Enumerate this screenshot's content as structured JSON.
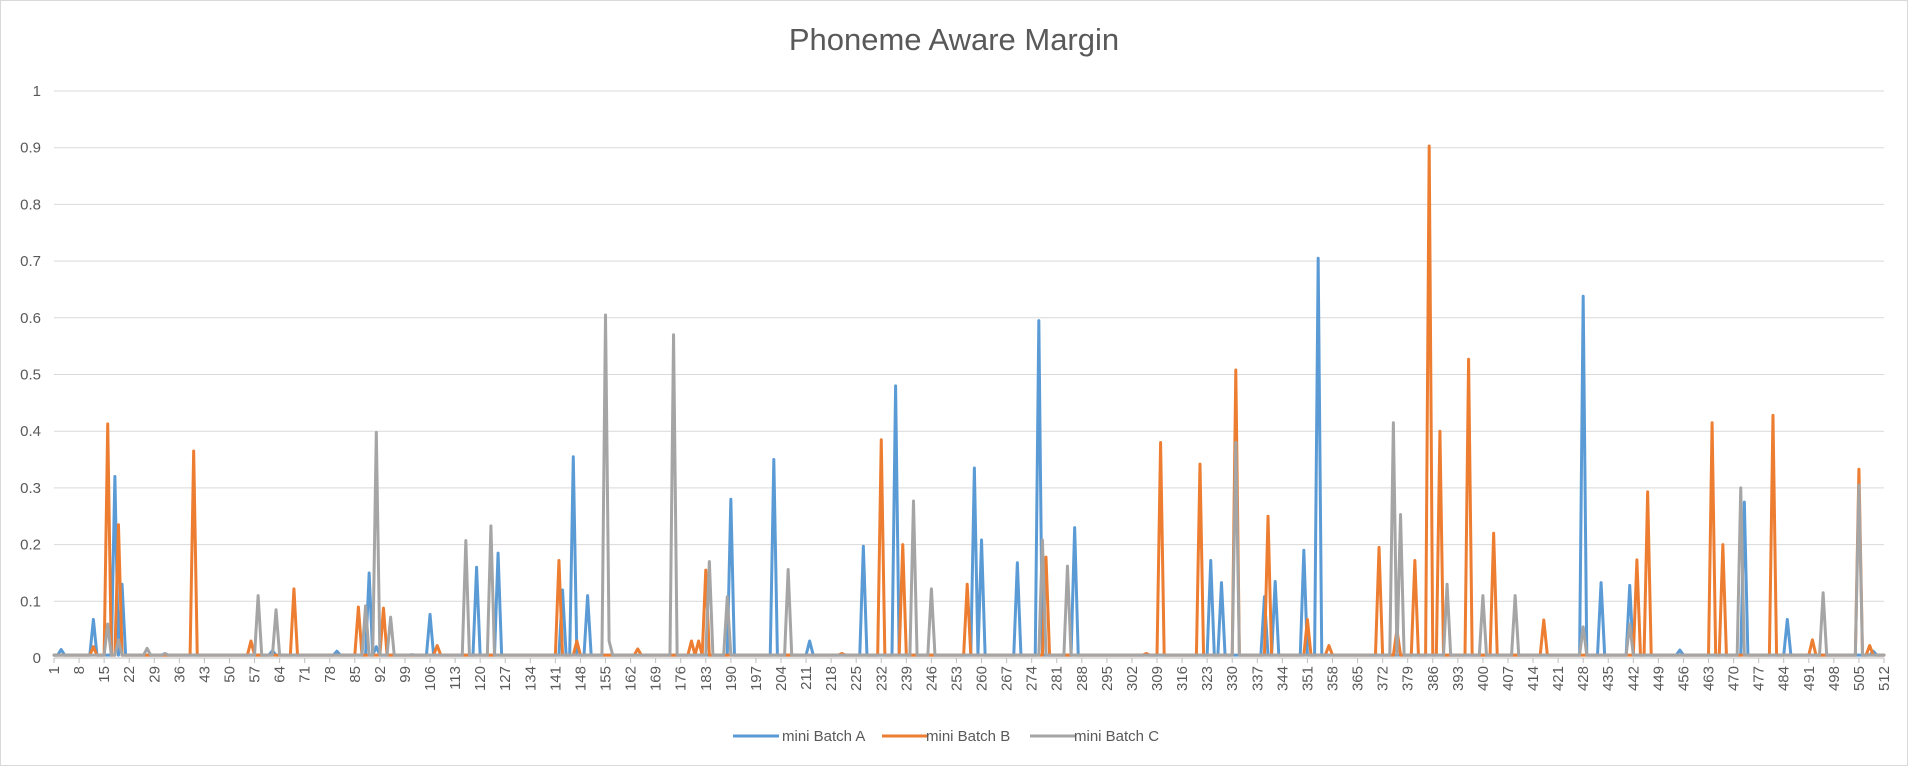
{
  "chart_data": {
    "type": "line",
    "title": "Phoneme Aware Margin",
    "xlabel": "",
    "ylabel": "",
    "xlim": [
      1,
      512
    ],
    "ylim": [
      0,
      1
    ],
    "y_ticks": [
      0,
      0.1,
      0.2,
      0.3,
      0.4,
      0.5,
      0.6,
      0.7,
      0.8,
      0.9,
      1
    ],
    "y_tick_labels": [
      "0",
      "0.1",
      "0.2",
      "0.3",
      "0.4",
      "0.5",
      "0.6",
      "0.7",
      "0.8",
      "0.9",
      "1"
    ],
    "x_tick_labels": [
      "1",
      "8",
      "15",
      "22",
      "29",
      "36",
      "43",
      "50",
      "57",
      "64",
      "71",
      "78",
      "85",
      "92",
      "99",
      "106",
      "113",
      "120",
      "127",
      "134",
      "141",
      "148",
      "155",
      "162",
      "169",
      "176",
      "183",
      "190",
      "197",
      "204",
      "211",
      "218",
      "225",
      "232",
      "239",
      "246",
      "253",
      "260",
      "267",
      "274",
      "281",
      "288",
      "295",
      "302",
      "309",
      "316",
      "323",
      "330",
      "337",
      "344",
      "351",
      "358",
      "365",
      "372",
      "379",
      "386",
      "393",
      "400",
      "407",
      "414",
      "421",
      "428",
      "435",
      "442",
      "449",
      "456",
      "463",
      "470",
      "477",
      "484",
      "491",
      "498",
      "505",
      "512"
    ],
    "grid": true,
    "legend_position": "bottom",
    "baseline": 0.005,
    "series": [
      {
        "name": "mini Batch A",
        "color": "#5b9bd5",
        "spikes": [
          [
            3,
            0.015
          ],
          [
            12,
            0.068
          ],
          [
            18,
            0.32
          ],
          [
            20,
            0.13
          ],
          [
            62,
            0.013
          ],
          [
            80,
            0.012
          ],
          [
            89,
            0.15
          ],
          [
            91,
            0.02
          ],
          [
            106,
            0.077
          ],
          [
            119,
            0.16
          ],
          [
            125,
            0.185
          ],
          [
            143,
            0.12
          ],
          [
            146,
            0.355
          ],
          [
            150,
            0.11
          ],
          [
            190,
            0.28
          ],
          [
            202,
            0.35
          ],
          [
            212,
            0.03
          ],
          [
            227,
            0.197
          ],
          [
            236,
            0.48
          ],
          [
            258,
            0.335
          ],
          [
            260,
            0.208
          ],
          [
            270,
            0.168
          ],
          [
            276,
            0.595
          ],
          [
            286,
            0.23
          ],
          [
            324,
            0.172
          ],
          [
            327,
            0.133
          ],
          [
            339,
            0.108
          ],
          [
            342,
            0.135
          ],
          [
            350,
            0.19
          ],
          [
            354,
            0.705
          ],
          [
            428,
            0.638
          ],
          [
            433,
            0.133
          ],
          [
            441,
            0.128
          ],
          [
            455,
            0.014
          ],
          [
            473,
            0.275
          ],
          [
            485,
            0.068
          ],
          [
            509,
            0.012
          ]
        ]
      },
      {
        "name": "mini Batch B",
        "color": "#ed7d31",
        "spikes": [
          [
            12,
            0.02
          ],
          [
            16,
            0.413
          ],
          [
            19,
            0.235
          ],
          [
            40,
            0.365
          ],
          [
            56,
            0.03
          ],
          [
            68,
            0.122
          ],
          [
            86,
            0.09
          ],
          [
            93,
            0.088
          ],
          [
            108,
            0.022
          ],
          [
            142,
            0.172
          ],
          [
            147,
            0.03
          ],
          [
            164,
            0.016
          ],
          [
            179,
            0.03
          ],
          [
            181,
            0.03
          ],
          [
            183,
            0.155
          ],
          [
            221,
            0.008
          ],
          [
            232,
            0.385
          ],
          [
            238,
            0.2
          ],
          [
            256,
            0.13
          ],
          [
            278,
            0.178
          ],
          [
            306,
            0.008
          ],
          [
            310,
            0.38
          ],
          [
            321,
            0.342
          ],
          [
            331,
            0.508
          ],
          [
            340,
            0.25
          ],
          [
            351,
            0.068
          ],
          [
            357,
            0.022
          ],
          [
            371,
            0.195
          ],
          [
            376,
            0.05
          ],
          [
            381,
            0.172
          ],
          [
            385,
            0.903
          ],
          [
            388,
            0.4
          ],
          [
            396,
            0.527
          ],
          [
            403,
            0.22
          ],
          [
            417,
            0.067
          ],
          [
            443,
            0.173
          ],
          [
            446,
            0.293
          ],
          [
            464,
            0.415
          ],
          [
            467,
            0.2
          ],
          [
            481,
            0.428
          ],
          [
            492,
            0.032
          ],
          [
            505,
            0.333
          ],
          [
            508,
            0.022
          ]
        ]
      },
      {
        "name": "mini Batch C",
        "color": "#a5a5a5",
        "spikes": [
          [
            16,
            0.06
          ],
          [
            19,
            0.032
          ],
          [
            27,
            0.017
          ],
          [
            32,
            0.008
          ],
          [
            58,
            0.11
          ],
          [
            63,
            0.085
          ],
          [
            88,
            0.092
          ],
          [
            91,
            0.398
          ],
          [
            95,
            0.072
          ],
          [
            101,
            0.006
          ],
          [
            116,
            0.207
          ],
          [
            123,
            0.233
          ],
          [
            155,
            0.605
          ],
          [
            156,
            0.03
          ],
          [
            174,
            0.57
          ],
          [
            184,
            0.17
          ],
          [
            189,
            0.108
          ],
          [
            206,
            0.156
          ],
          [
            241,
            0.277
          ],
          [
            246,
            0.122
          ],
          [
            277,
            0.208
          ],
          [
            284,
            0.162
          ],
          [
            331,
            0.38
          ],
          [
            375,
            0.415
          ],
          [
            377,
            0.253
          ],
          [
            390,
            0.13
          ],
          [
            400,
            0.11
          ],
          [
            409,
            0.11
          ],
          [
            428,
            0.055
          ],
          [
            441,
            0.06
          ],
          [
            472,
            0.3
          ],
          [
            495,
            0.115
          ],
          [
            505,
            0.305
          ]
        ]
      }
    ]
  }
}
